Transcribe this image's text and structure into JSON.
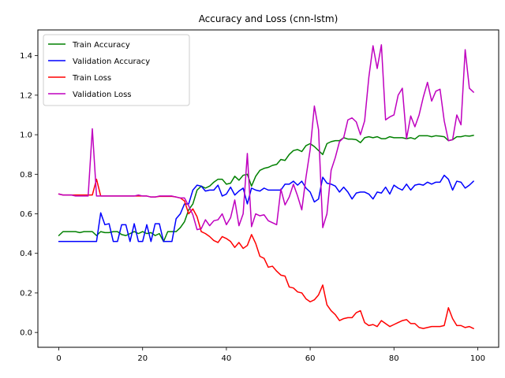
{
  "chart_data": {
    "type": "line",
    "title": "Accuracy and Loss (cnn-lstm)",
    "xlabel": "",
    "ylabel": "",
    "xlim": [
      -5,
      105
    ],
    "ylim": [
      -0.075,
      1.53
    ],
    "xticks": [
      0,
      20,
      40,
      60,
      80,
      100
    ],
    "xtick_labels": [
      "0",
      "20",
      "40",
      "60",
      "80",
      "100"
    ],
    "yticks": [
      0.0,
      0.2,
      0.4,
      0.6,
      0.8,
      1.0,
      1.2,
      1.4
    ],
    "ytick_labels": [
      "0.0",
      "0.2",
      "0.4",
      "0.6",
      "0.8",
      "1.0",
      "1.2",
      "1.4"
    ],
    "grid": false,
    "legend": "top-left",
    "x": [
      0,
      1,
      2,
      3,
      4,
      5,
      6,
      7,
      8,
      9,
      10,
      11,
      12,
      13,
      14,
      15,
      16,
      17,
      18,
      19,
      20,
      21,
      22,
      23,
      24,
      25,
      26,
      27,
      28,
      29,
      30,
      31,
      32,
      33,
      34,
      35,
      36,
      37,
      38,
      39,
      40,
      41,
      42,
      43,
      44,
      45,
      46,
      47,
      48,
      49,
      50,
      51,
      52,
      53,
      54,
      55,
      56,
      57,
      58,
      59,
      60,
      61,
      62,
      63,
      64,
      65,
      66,
      67,
      68,
      69,
      70,
      71,
      72,
      73,
      74,
      75,
      76,
      77,
      78,
      79,
      80,
      81,
      82,
      83,
      84,
      85,
      86,
      87,
      88,
      89,
      90,
      91,
      92,
      93,
      94,
      95,
      96,
      97,
      98,
      99
    ],
    "series": [
      {
        "name": "Train Accuracy",
        "color": "#008000",
        "values": [
          0.49,
          0.51,
          0.51,
          0.51,
          0.51,
          0.505,
          0.51,
          0.51,
          0.51,
          0.49,
          0.51,
          0.505,
          0.505,
          0.51,
          0.51,
          0.495,
          0.49,
          0.5,
          0.51,
          0.5,
          0.51,
          0.5,
          0.505,
          0.49,
          0.5,
          0.46,
          0.51,
          0.51,
          0.51,
          0.53,
          0.56,
          0.62,
          0.65,
          0.72,
          0.74,
          0.73,
          0.74,
          0.76,
          0.775,
          0.775,
          0.75,
          0.755,
          0.79,
          0.77,
          0.795,
          0.8,
          0.74,
          0.79,
          0.82,
          0.83,
          0.835,
          0.845,
          0.85,
          0.875,
          0.87,
          0.9,
          0.92,
          0.925,
          0.915,
          0.945,
          0.955,
          0.94,
          0.92,
          0.9,
          0.955,
          0.965,
          0.97,
          0.97,
          0.985,
          0.978,
          0.978,
          0.975,
          0.96,
          0.985,
          0.99,
          0.985,
          0.99,
          0.98,
          0.98,
          0.99,
          0.985,
          0.985,
          0.985,
          0.98,
          0.985,
          0.978,
          0.995,
          0.995,
          0.995,
          0.99,
          0.995,
          0.993,
          0.99,
          0.97,
          0.975,
          0.99,
          0.99,
          0.995,
          0.993,
          0.997
        ]
      },
      {
        "name": "Validation Accuracy",
        "color": "#0000ff",
        "values": [
          0.46,
          0.46,
          0.46,
          0.46,
          0.46,
          0.46,
          0.46,
          0.46,
          0.46,
          0.46,
          0.605,
          0.545,
          0.55,
          0.46,
          0.46,
          0.545,
          0.545,
          0.46,
          0.55,
          0.46,
          0.46,
          0.545,
          0.46,
          0.55,
          0.55,
          0.46,
          0.46,
          0.46,
          0.575,
          0.6,
          0.65,
          0.65,
          0.72,
          0.745,
          0.74,
          0.715,
          0.72,
          0.72,
          0.745,
          0.69,
          0.7,
          0.735,
          0.695,
          0.715,
          0.73,
          0.65,
          0.73,
          0.72,
          0.715,
          0.73,
          0.72,
          0.72,
          0.72,
          0.72,
          0.75,
          0.75,
          0.765,
          0.745,
          0.765,
          0.73,
          0.71,
          0.66,
          0.675,
          0.785,
          0.755,
          0.75,
          0.74,
          0.71,
          0.735,
          0.71,
          0.675,
          0.705,
          0.71,
          0.71,
          0.7,
          0.675,
          0.71,
          0.705,
          0.735,
          0.7,
          0.745,
          0.73,
          0.72,
          0.75,
          0.72,
          0.745,
          0.75,
          0.745,
          0.76,
          0.75,
          0.76,
          0.76,
          0.795,
          0.775,
          0.72,
          0.765,
          0.76,
          0.73,
          0.745,
          0.765
        ]
      },
      {
        "name": "Train Loss",
        "color": "#ff0000",
        "values": [
          0.7,
          0.695,
          0.695,
          0.695,
          0.695,
          0.695,
          0.695,
          0.695,
          0.695,
          0.775,
          0.69,
          0.69,
          0.69,
          0.69,
          0.69,
          0.69,
          0.69,
          0.69,
          0.69,
          0.69,
          0.69,
          0.69,
          0.685,
          0.685,
          0.688,
          0.688,
          0.688,
          0.688,
          0.685,
          0.68,
          0.665,
          0.6,
          0.625,
          0.585,
          0.51,
          0.5,
          0.485,
          0.465,
          0.455,
          0.485,
          0.475,
          0.46,
          0.43,
          0.455,
          0.425,
          0.44,
          0.495,
          0.45,
          0.385,
          0.375,
          0.33,
          0.335,
          0.31,
          0.29,
          0.285,
          0.23,
          0.225,
          0.205,
          0.2,
          0.17,
          0.155,
          0.165,
          0.19,
          0.24,
          0.14,
          0.11,
          0.09,
          0.06,
          0.07,
          0.075,
          0.075,
          0.1,
          0.11,
          0.05,
          0.035,
          0.04,
          0.03,
          0.06,
          0.045,
          0.03,
          0.04,
          0.05,
          0.06,
          0.065,
          0.045,
          0.045,
          0.025,
          0.02,
          0.025,
          0.03,
          0.03,
          0.03,
          0.035,
          0.125,
          0.07,
          0.035,
          0.035,
          0.025,
          0.03,
          0.02
        ]
      },
      {
        "name": "Validation Loss",
        "color": "#bf00bf",
        "values": [
          0.7,
          0.695,
          0.695,
          0.695,
          0.69,
          0.69,
          0.69,
          0.69,
          1.03,
          0.69,
          0.69,
          0.69,
          0.69,
          0.69,
          0.69,
          0.69,
          0.69,
          0.69,
          0.69,
          0.695,
          0.69,
          0.69,
          0.685,
          0.685,
          0.69,
          0.69,
          0.69,
          0.69,
          0.685,
          0.68,
          0.68,
          0.64,
          0.595,
          0.52,
          0.525,
          0.57,
          0.54,
          0.565,
          0.57,
          0.6,
          0.545,
          0.58,
          0.67,
          0.54,
          0.6,
          0.905,
          0.535,
          0.6,
          0.59,
          0.595,
          0.565,
          0.555,
          0.545,
          0.725,
          0.645,
          0.685,
          0.75,
          0.69,
          0.62,
          0.785,
          0.925,
          1.145,
          1.025,
          0.53,
          0.6,
          0.82,
          0.885,
          0.965,
          0.985,
          1.075,
          1.085,
          1.065,
          1.0,
          1.07,
          1.29,
          1.45,
          1.335,
          1.455,
          1.075,
          1.09,
          1.1,
          1.2,
          1.235,
          0.98,
          1.095,
          1.04,
          1.1,
          1.19,
          1.265,
          1.17,
          1.22,
          1.23,
          1.07,
          0.97,
          0.975,
          1.1,
          1.05,
          1.43,
          1.235,
          1.215
        ]
      }
    ]
  }
}
